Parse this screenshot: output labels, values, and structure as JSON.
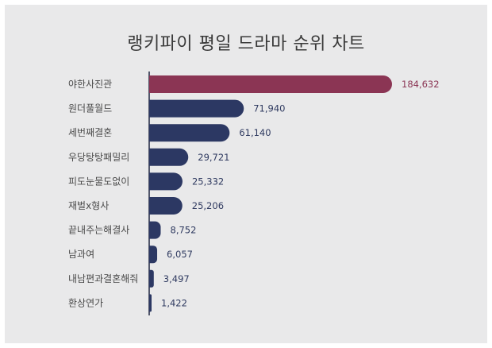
{
  "chart_data": {
    "type": "bar",
    "orientation": "horizontal",
    "title": "랭키파이 평일 드라마 순위 차트",
    "categories": [
      "야한사진관",
      "원더풀월드",
      "세번째결혼",
      "우당탕탕패밀리",
      "피도눈물도없이",
      "재벌x형사",
      "끝내주는해결사",
      "남과여",
      "내남편과결혼해줘",
      "환상연가"
    ],
    "values": [
      184632,
      71940,
      61140,
      29721,
      25332,
      25206,
      8752,
      6057,
      3497,
      1422
    ],
    "value_labels": [
      "184,632",
      "71,940",
      "61,140",
      "29,721",
      "25,332",
      "25,206",
      "8,752",
      "6,057",
      "3,497",
      "1,422"
    ],
    "colors": {
      "highlight": "#8b3554",
      "bar": "#2c3863",
      "highlight_label": "#8b3554",
      "label": "#2f3a60"
    },
    "grid": false,
    "legend": "none"
  }
}
